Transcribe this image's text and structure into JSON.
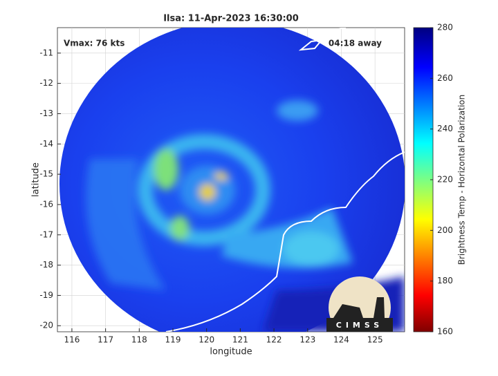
{
  "chart_data": {
    "type": "heatmap",
    "title": "Ilsa: 11-Apr-2023 16:30:00",
    "xlabel": "longitude",
    "ylabel": "latitude",
    "xlim": [
      115.57,
      125.88
    ],
    "xticks": [
      116,
      117,
      118,
      119,
      120,
      121,
      122,
      123,
      124,
      125
    ],
    "ylim": [
      -20.2,
      -10.16
    ],
    "yticks": [
      -11,
      -12,
      -13,
      -14,
      -15,
      -16,
      -17,
      -18,
      -19,
      -20
    ],
    "grid": true,
    "annotations": [
      "Vmax: 76 kts",
      "04:18 away"
    ],
    "logo": "CIMSS",
    "colorbar": {
      "label": "Brightness Temp - Horizontal Polarization",
      "lim": [
        160,
        280
      ],
      "ticks": [
        160,
        180,
        200,
        220,
        240,
        260,
        280
      ],
      "colormap": "jet"
    }
  }
}
